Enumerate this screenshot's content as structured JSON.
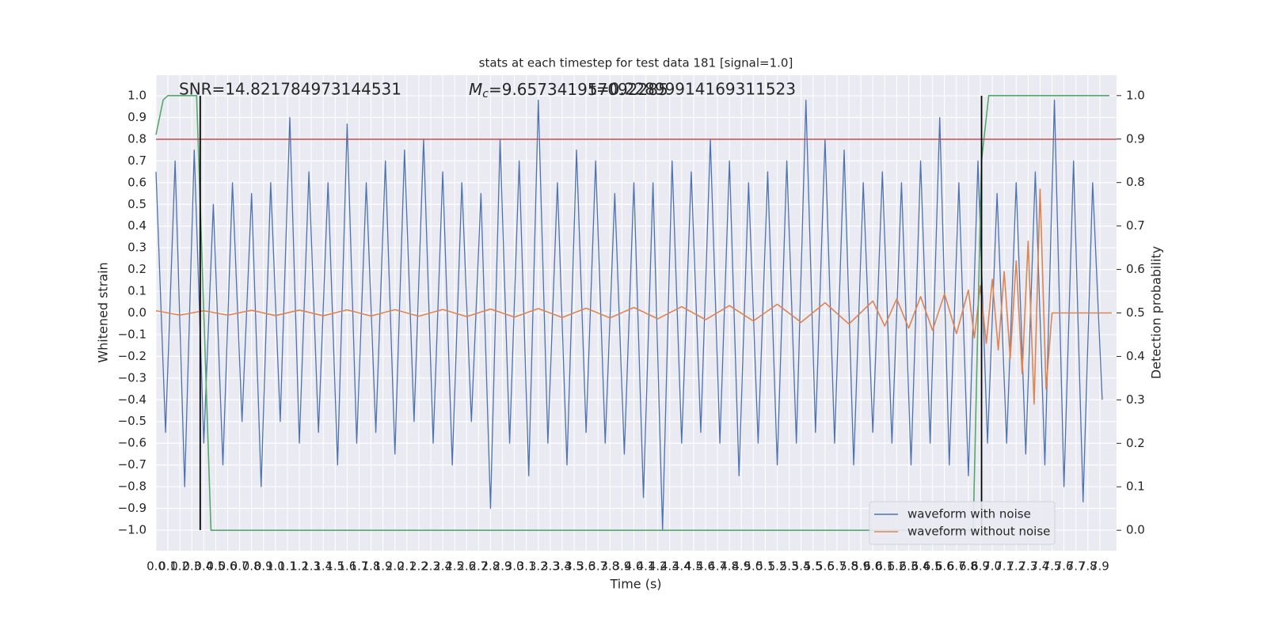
{
  "chart_data": {
    "type": "line",
    "title": "stats at each timestep for test data 181 [signal=1.0]",
    "x_label": "Time (s)",
    "y_label": "Whitened strain",
    "y2_label": "Detection probability",
    "annotations": [
      {
        "text": "SNR=14.821784973144531"
      },
      {
        "symbol": "M",
        "subscript": "c",
        "text": "=9.657341957092285"
      },
      {
        "text": "t=0.22899914169311523"
      }
    ],
    "xlim": [
      0,
      8.04
    ],
    "ylim": [
      -1.095,
      1.095
    ],
    "y2lim": [
      -0.047,
      1.047
    ],
    "grid": true,
    "legend": "lower right",
    "xticks": [
      {
        "value": 0,
        "label": "0.0"
      },
      0.1,
      0.2,
      0.3,
      0.4,
      0.5,
      0.6,
      0.7,
      0.8,
      0.9,
      {
        "value": 1,
        "label": "1.0"
      },
      1.1,
      1.2,
      1.3,
      1.4,
      1.5,
      1.6,
      1.7,
      1.8,
      1.9,
      {
        "value": 2,
        "label": "2.0"
      },
      2.1,
      2.2,
      2.3,
      2.4,
      2.5,
      2.6,
      2.7,
      2.8,
      2.9,
      {
        "value": 3,
        "label": "3.0"
      },
      3.1,
      3.2,
      3.3,
      3.4,
      3.5,
      3.6,
      3.7,
      3.8,
      3.9,
      {
        "value": 4,
        "label": "4.0"
      },
      4.1,
      4.2,
      4.3,
      4.4,
      4.5,
      4.6,
      4.7,
      4.8,
      4.9,
      {
        "value": 5,
        "label": "5.0"
      },
      5.1,
      5.2,
      5.3,
      5.4,
      5.5,
      5.6,
      5.7,
      5.8,
      5.9,
      {
        "value": 6,
        "label": "6.0"
      },
      6.1,
      6.2,
      6.3,
      6.4,
      6.5,
      6.6,
      6.7,
      6.8,
      6.9,
      {
        "value": 7,
        "label": "7.0"
      },
      7.1,
      7.2,
      7.3,
      7.4,
      7.5,
      7.6,
      7.7,
      7.8,
      7.9
    ],
    "yticks": [
      {
        "value": -1,
        "label": "−1.0"
      },
      {
        "value": -0.9,
        "label": "−0.9"
      },
      {
        "value": -0.8,
        "label": "−0.8"
      },
      {
        "value": -0.7,
        "label": "−0.7"
      },
      {
        "value": -0.6,
        "label": "−0.6"
      },
      {
        "value": -0.5,
        "label": "−0.5"
      },
      {
        "value": -0.4,
        "label": "−0.4"
      },
      {
        "value": -0.3,
        "label": "−0.3"
      },
      {
        "value": -0.2,
        "label": "−0.2"
      },
      {
        "value": -0.1,
        "label": "−0.1"
      },
      {
        "value": 0,
        "label": "0.0"
      },
      0.1,
      0.2,
      0.3,
      0.4,
      0.5,
      0.6,
      0.7,
      0.8,
      0.9,
      {
        "value": 1,
        "label": "1.0"
      }
    ],
    "y2ticks": [
      {
        "value": 0,
        "label": "0.0"
      },
      0.1,
      0.2,
      0.3,
      0.4,
      0.5,
      0.6,
      0.7,
      0.8,
      0.9,
      {
        "value": 1,
        "label": "1.0"
      }
    ],
    "series": [
      {
        "name": "waveform with noise",
        "color": "#4c72b0",
        "x": [
          0,
          0.08,
          0.16,
          0.24,
          0.32,
          0.4,
          0.48,
          0.56,
          0.64,
          0.72,
          0.8,
          0.88,
          0.96,
          1.04,
          1.12,
          1.2,
          1.28,
          1.36,
          1.44,
          1.52,
          1.6,
          1.68,
          1.76,
          1.84,
          1.92,
          2,
          2.08,
          2.16,
          2.24,
          2.32,
          2.4,
          2.48,
          2.56,
          2.64,
          2.72,
          2.8,
          2.88,
          2.96,
          3.04,
          3.12,
          3.2,
          3.28,
          3.36,
          3.44,
          3.52,
          3.6,
          3.68,
          3.76,
          3.84,
          3.92,
          4,
          4.08,
          4.16,
          4.24,
          4.32,
          4.4,
          4.48,
          4.56,
          4.64,
          4.72,
          4.8,
          4.88,
          4.96,
          5.04,
          5.12,
          5.2,
          5.28,
          5.36,
          5.44,
          5.52,
          5.6,
          5.68,
          5.76,
          5.84,
          5.92,
          6,
          6.08,
          6.16,
          6.24,
          6.32,
          6.4,
          6.48,
          6.56,
          6.64,
          6.72,
          6.8,
          6.88,
          6.96,
          7.04,
          7.12,
          7.2,
          7.28,
          7.36,
          7.44,
          7.52,
          7.6,
          7.68,
          7.76,
          7.84,
          7.92
        ],
        "values": [
          0.65,
          -0.55,
          0.7,
          -0.8,
          0.75,
          -0.6,
          0.5,
          -0.7,
          0.6,
          -0.5,
          0.55,
          -0.8,
          0.6,
          -0.5,
          0.9,
          -0.6,
          0.65,
          -0.55,
          0.6,
          -0.7,
          0.87,
          -0.6,
          0.6,
          -0.55,
          0.7,
          -0.65,
          0.75,
          -0.5,
          0.8,
          -0.6,
          0.65,
          -0.7,
          0.6,
          -0.5,
          0.55,
          -0.9,
          0.8,
          -0.6,
          0.7,
          -0.75,
          0.98,
          -0.6,
          0.6,
          -0.7,
          0.75,
          -0.55,
          0.7,
          -0.6,
          0.55,
          -0.65,
          0.6,
          -0.85,
          0.6,
          -1.0,
          0.7,
          -0.6,
          0.65,
          -0.55,
          0.8,
          -0.6,
          0.7,
          -0.75,
          0.6,
          -0.6,
          0.65,
          -0.7,
          0.7,
          -0.6,
          0.98,
          -0.55,
          0.8,
          -0.6,
          0.75,
          -0.7,
          0.6,
          -0.55,
          0.65,
          -0.6,
          0.6,
          -0.7,
          0.7,
          -0.6,
          0.9,
          -0.7,
          0.6,
          -0.75,
          0.7,
          -0.6,
          0.55,
          -0.6,
          0.6,
          -0.65,
          0.65,
          -0.7,
          0.98,
          -0.8,
          0.7,
          -0.87,
          0.6,
          -0.4
        ]
      },
      {
        "name": "waveform without noise",
        "color": "#dd8452",
        "x": [
          0,
          0.2,
          0.4,
          0.6,
          0.8,
          1,
          1.2,
          1.4,
          1.6,
          1.8,
          2,
          2.2,
          2.4,
          2.6,
          2.8,
          3,
          3.2,
          3.4,
          3.6,
          3.8,
          4,
          4.2,
          4.4,
          4.6,
          4.8,
          5,
          5.2,
          5.4,
          5.6,
          5.8,
          6,
          6.1,
          6.2,
          6.3,
          6.4,
          6.5,
          6.6,
          6.7,
          6.8,
          6.85,
          6.9,
          6.95,
          7,
          7.05,
          7.1,
          7.15,
          7.2,
          7.25,
          7.3,
          7.35,
          7.4,
          7.45,
          7.5,
          8
        ],
        "values": [
          0.01,
          -0.01,
          0.01,
          -0.01,
          0.012,
          -0.012,
          0.013,
          -0.013,
          0.014,
          -0.014,
          0.015,
          -0.015,
          0.016,
          -0.017,
          0.018,
          -0.019,
          0.02,
          -0.021,
          0.022,
          -0.023,
          0.025,
          -0.027,
          0.029,
          -0.031,
          0.034,
          -0.037,
          0.04,
          -0.043,
          0.047,
          -0.051,
          0.055,
          -0.06,
          0.065,
          -0.07,
          0.075,
          -0.08,
          0.088,
          -0.095,
          0.105,
          -0.115,
          0.125,
          -0.14,
          0.155,
          -0.17,
          0.19,
          -0.21,
          0.24,
          -0.28,
          0.33,
          -0.42,
          0.57,
          -0.35,
          0,
          0
        ]
      },
      {
        "color": "#55a868",
        "axis": "y2",
        "x": [
          0,
          0.06,
          0.1,
          0.34,
          0.46,
          6.84,
          6.91,
          6.97,
          7.98
        ],
        "values": [
          0.91,
          0.99,
          1.0,
          1.0,
          0.0,
          0.0,
          0.85,
          1.0,
          1.0
        ]
      }
    ],
    "hlines": [
      {
        "value": 0.8,
        "color": "#c44e52"
      }
    ],
    "vlines": {
      "x": [
        0.37,
        6.91
      ],
      "ymin": -1,
      "ymax": 1,
      "color": "#000000"
    }
  }
}
